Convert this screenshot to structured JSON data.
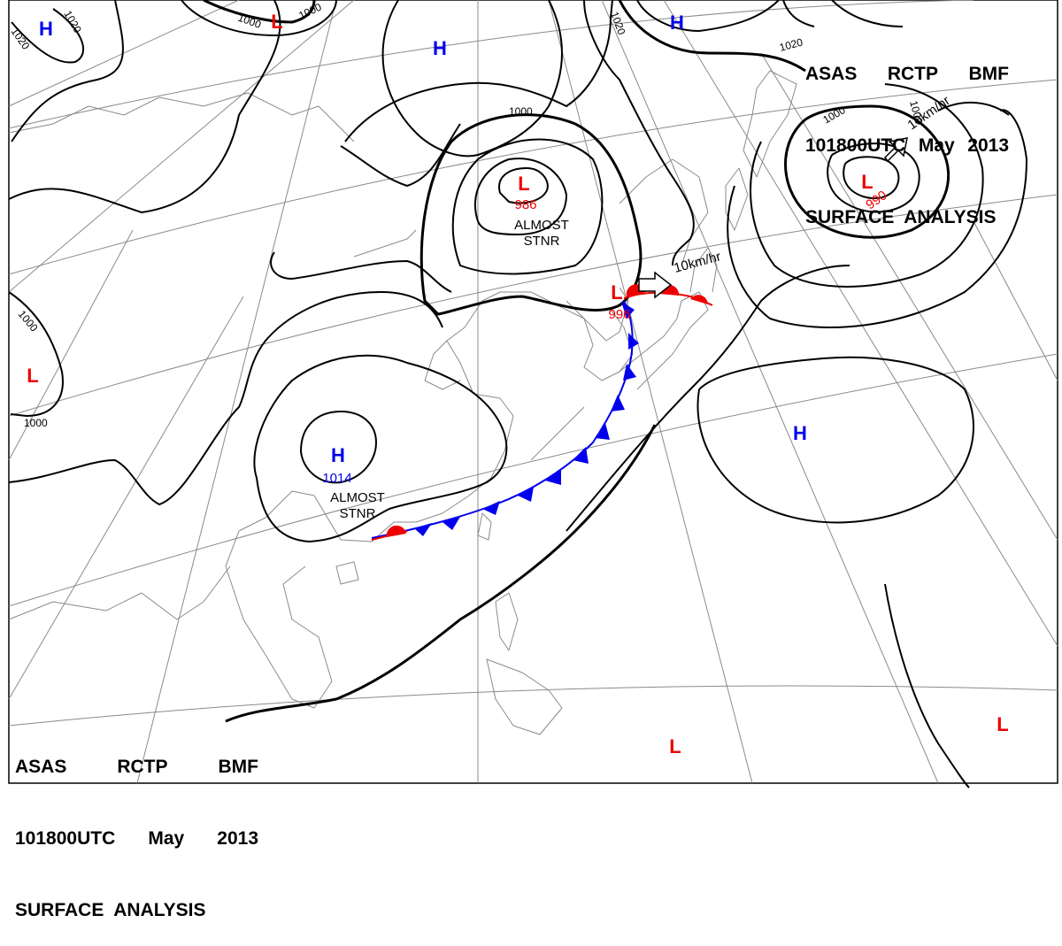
{
  "header": {
    "line1": [
      "ASAS",
      "RCTP",
      "BMF"
    ],
    "line2": [
      "101800UTC",
      "May",
      "2013"
    ],
    "line3": "SURFACE  ANALYSIS"
  },
  "colors": {
    "high": "#0000ee",
    "low": "#ee0000",
    "isobar": "#000000",
    "coast": "#8a8a8a",
    "grid": "#8a8a8a",
    "cold_front": "#0000ee",
    "warm_front": "#ee0000"
  },
  "centers": [
    {
      "type": "H",
      "pressure": ""
    },
    {
      "type": "L",
      "pressure": ""
    },
    {
      "type": "H",
      "pressure": ""
    },
    {
      "type": "H",
      "pressure": ""
    },
    {
      "type": "L",
      "pressure": "986"
    },
    {
      "type": "L",
      "pressure": "990"
    },
    {
      "type": "L",
      "pressure": ""
    },
    {
      "type": "L",
      "pressure": "996"
    },
    {
      "type": "H",
      "pressure": "1014"
    },
    {
      "type": "H",
      "pressure": ""
    },
    {
      "type": "L",
      "pressure": ""
    },
    {
      "type": "L",
      "pressure": ""
    }
  ],
  "motion_labels": [
    "ALMOST\nSTNR",
    "ALMOST\nSTNR",
    "10km/hr",
    "10km/hr"
  ],
  "isobar_labels": [
    "1020",
    "1020",
    "1000",
    "1000",
    "1020",
    "1020",
    "1000",
    "1000",
    "1000",
    "1000",
    "1000"
  ],
  "fronts": {
    "cold": "cold front",
    "warm": "warm front"
  }
}
